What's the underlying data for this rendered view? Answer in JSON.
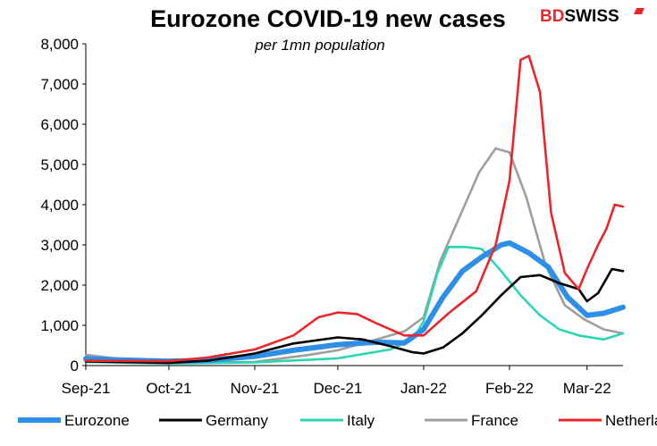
{
  "brand": {
    "part1": "BD",
    "part2": "SWISS",
    "accent": "#e8262b"
  },
  "chart_data": {
    "type": "line",
    "title": "Eurozone COVID-19 new cases",
    "subtitle": "per 1mn population",
    "xlabel": "",
    "ylabel": "",
    "ylim": [
      0,
      8000
    ],
    "yticks": [
      0,
      1000,
      2000,
      3000,
      4000,
      5000,
      6000,
      7000,
      8000
    ],
    "ytick_labels": [
      "0",
      "1,000",
      "2,000",
      "3,000",
      "4,000",
      "5,000",
      "6,000",
      "7,000",
      "8,000"
    ],
    "xlim": [
      "2021-09-01",
      "2022-03-14"
    ],
    "xticks": [
      "2021-09-01",
      "2021-10-01",
      "2021-11-01",
      "2021-12-01",
      "2022-01-01",
      "2022-02-01",
      "2022-03-01"
    ],
    "xtick_labels": [
      "Sep-21",
      "Oct-21",
      "Nov-21",
      "Dec-21",
      "Jan-22",
      "Feb-22",
      "Mar-22"
    ],
    "grid": false,
    "legend": "bottom",
    "series": [
      {
        "name": "Eurozone",
        "color": "#2e8fe6",
        "points": [
          [
            "2021-09-01",
            170
          ],
          [
            "2021-09-15",
            135
          ],
          [
            "2021-10-01",
            110
          ],
          [
            "2021-10-15",
            130
          ],
          [
            "2021-11-01",
            230
          ],
          [
            "2021-11-15",
            380
          ],
          [
            "2021-12-01",
            520
          ],
          [
            "2021-12-15",
            580
          ],
          [
            "2021-12-25",
            560
          ],
          [
            "2022-01-01",
            900
          ],
          [
            "2022-01-08",
            1700
          ],
          [
            "2022-01-15",
            2350
          ],
          [
            "2022-01-22",
            2700
          ],
          [
            "2022-01-29",
            3000
          ],
          [
            "2022-02-01",
            3050
          ],
          [
            "2022-02-08",
            2800
          ],
          [
            "2022-02-15",
            2450
          ],
          [
            "2022-02-22",
            1700
          ],
          [
            "2022-03-01",
            1250
          ],
          [
            "2022-03-07",
            1300
          ],
          [
            "2022-03-14",
            1450
          ]
        ]
      },
      {
        "name": "Germany",
        "color": "#000000",
        "points": [
          [
            "2021-09-01",
            100
          ],
          [
            "2021-10-01",
            70
          ],
          [
            "2021-10-15",
            120
          ],
          [
            "2021-11-01",
            300
          ],
          [
            "2021-11-15",
            550
          ],
          [
            "2021-12-01",
            700
          ],
          [
            "2021-12-10",
            650
          ],
          [
            "2021-12-20",
            480
          ],
          [
            "2021-12-28",
            330
          ],
          [
            "2022-01-01",
            300
          ],
          [
            "2022-01-08",
            450
          ],
          [
            "2022-01-15",
            800
          ],
          [
            "2022-01-22",
            1250
          ],
          [
            "2022-01-29",
            1750
          ],
          [
            "2022-02-05",
            2200
          ],
          [
            "2022-02-12",
            2250
          ],
          [
            "2022-02-19",
            2050
          ],
          [
            "2022-02-26",
            1900
          ],
          [
            "2022-03-01",
            1600
          ],
          [
            "2022-03-05",
            1800
          ],
          [
            "2022-03-10",
            2400
          ],
          [
            "2022-03-14",
            2350
          ]
        ]
      },
      {
        "name": "Italy",
        "color": "#2dd5b3",
        "points": [
          [
            "2021-09-01",
            90
          ],
          [
            "2021-10-01",
            50
          ],
          [
            "2021-11-01",
            80
          ],
          [
            "2021-12-01",
            180
          ],
          [
            "2021-12-20",
            400
          ],
          [
            "2021-12-28",
            650
          ],
          [
            "2022-01-01",
            1100
          ],
          [
            "2022-01-06",
            2300
          ],
          [
            "2022-01-10",
            2950
          ],
          [
            "2022-01-16",
            2950
          ],
          [
            "2022-01-22",
            2900
          ],
          [
            "2022-01-29",
            2350
          ],
          [
            "2022-02-05",
            1750
          ],
          [
            "2022-02-12",
            1250
          ],
          [
            "2022-02-19",
            900
          ],
          [
            "2022-02-26",
            750
          ],
          [
            "2022-03-07",
            650
          ],
          [
            "2022-03-14",
            800
          ]
        ]
      },
      {
        "name": "France",
        "color": "#9e9e9e",
        "points": [
          [
            "2021-09-01",
            270
          ],
          [
            "2021-09-15",
            150
          ],
          [
            "2021-10-01",
            60
          ],
          [
            "2021-11-01",
            90
          ],
          [
            "2021-11-20",
            260
          ],
          [
            "2021-12-01",
            380
          ],
          [
            "2021-12-15",
            650
          ],
          [
            "2021-12-25",
            850
          ],
          [
            "2022-01-01",
            1200
          ],
          [
            "2022-01-07",
            2600
          ],
          [
            "2022-01-14",
            3700
          ],
          [
            "2022-01-21",
            4800
          ],
          [
            "2022-01-27",
            5400
          ],
          [
            "2022-02-01",
            5300
          ],
          [
            "2022-02-07",
            4200
          ],
          [
            "2022-02-14",
            2500
          ],
          [
            "2022-02-21",
            1500
          ],
          [
            "2022-02-28",
            1150
          ],
          [
            "2022-03-07",
            900
          ],
          [
            "2022-03-14",
            800
          ]
        ]
      },
      {
        "name": "Netherlands",
        "color": "#e8262b",
        "points": [
          [
            "2021-09-01",
            120
          ],
          [
            "2021-10-01",
            110
          ],
          [
            "2021-10-15",
            200
          ],
          [
            "2021-11-01",
            400
          ],
          [
            "2021-11-15",
            750
          ],
          [
            "2021-11-24",
            1200
          ],
          [
            "2021-12-01",
            1320
          ],
          [
            "2021-12-08",
            1280
          ],
          [
            "2021-12-15",
            1050
          ],
          [
            "2021-12-25",
            750
          ],
          [
            "2022-01-01",
            750
          ],
          [
            "2022-01-10",
            1300
          ],
          [
            "2022-01-20",
            1850
          ],
          [
            "2022-01-27",
            3000
          ],
          [
            "2022-02-01",
            4600
          ],
          [
            "2022-02-05",
            7600
          ],
          [
            "2022-02-08",
            7700
          ],
          [
            "2022-02-12",
            6800
          ],
          [
            "2022-02-16",
            3800
          ],
          [
            "2022-02-21",
            2300
          ],
          [
            "2022-02-26",
            1900
          ],
          [
            "2022-03-01",
            2400
          ],
          [
            "2022-03-05",
            3000
          ],
          [
            "2022-03-08",
            3400
          ],
          [
            "2022-03-11",
            4000
          ],
          [
            "2022-03-14",
            3950
          ]
        ]
      }
    ]
  }
}
